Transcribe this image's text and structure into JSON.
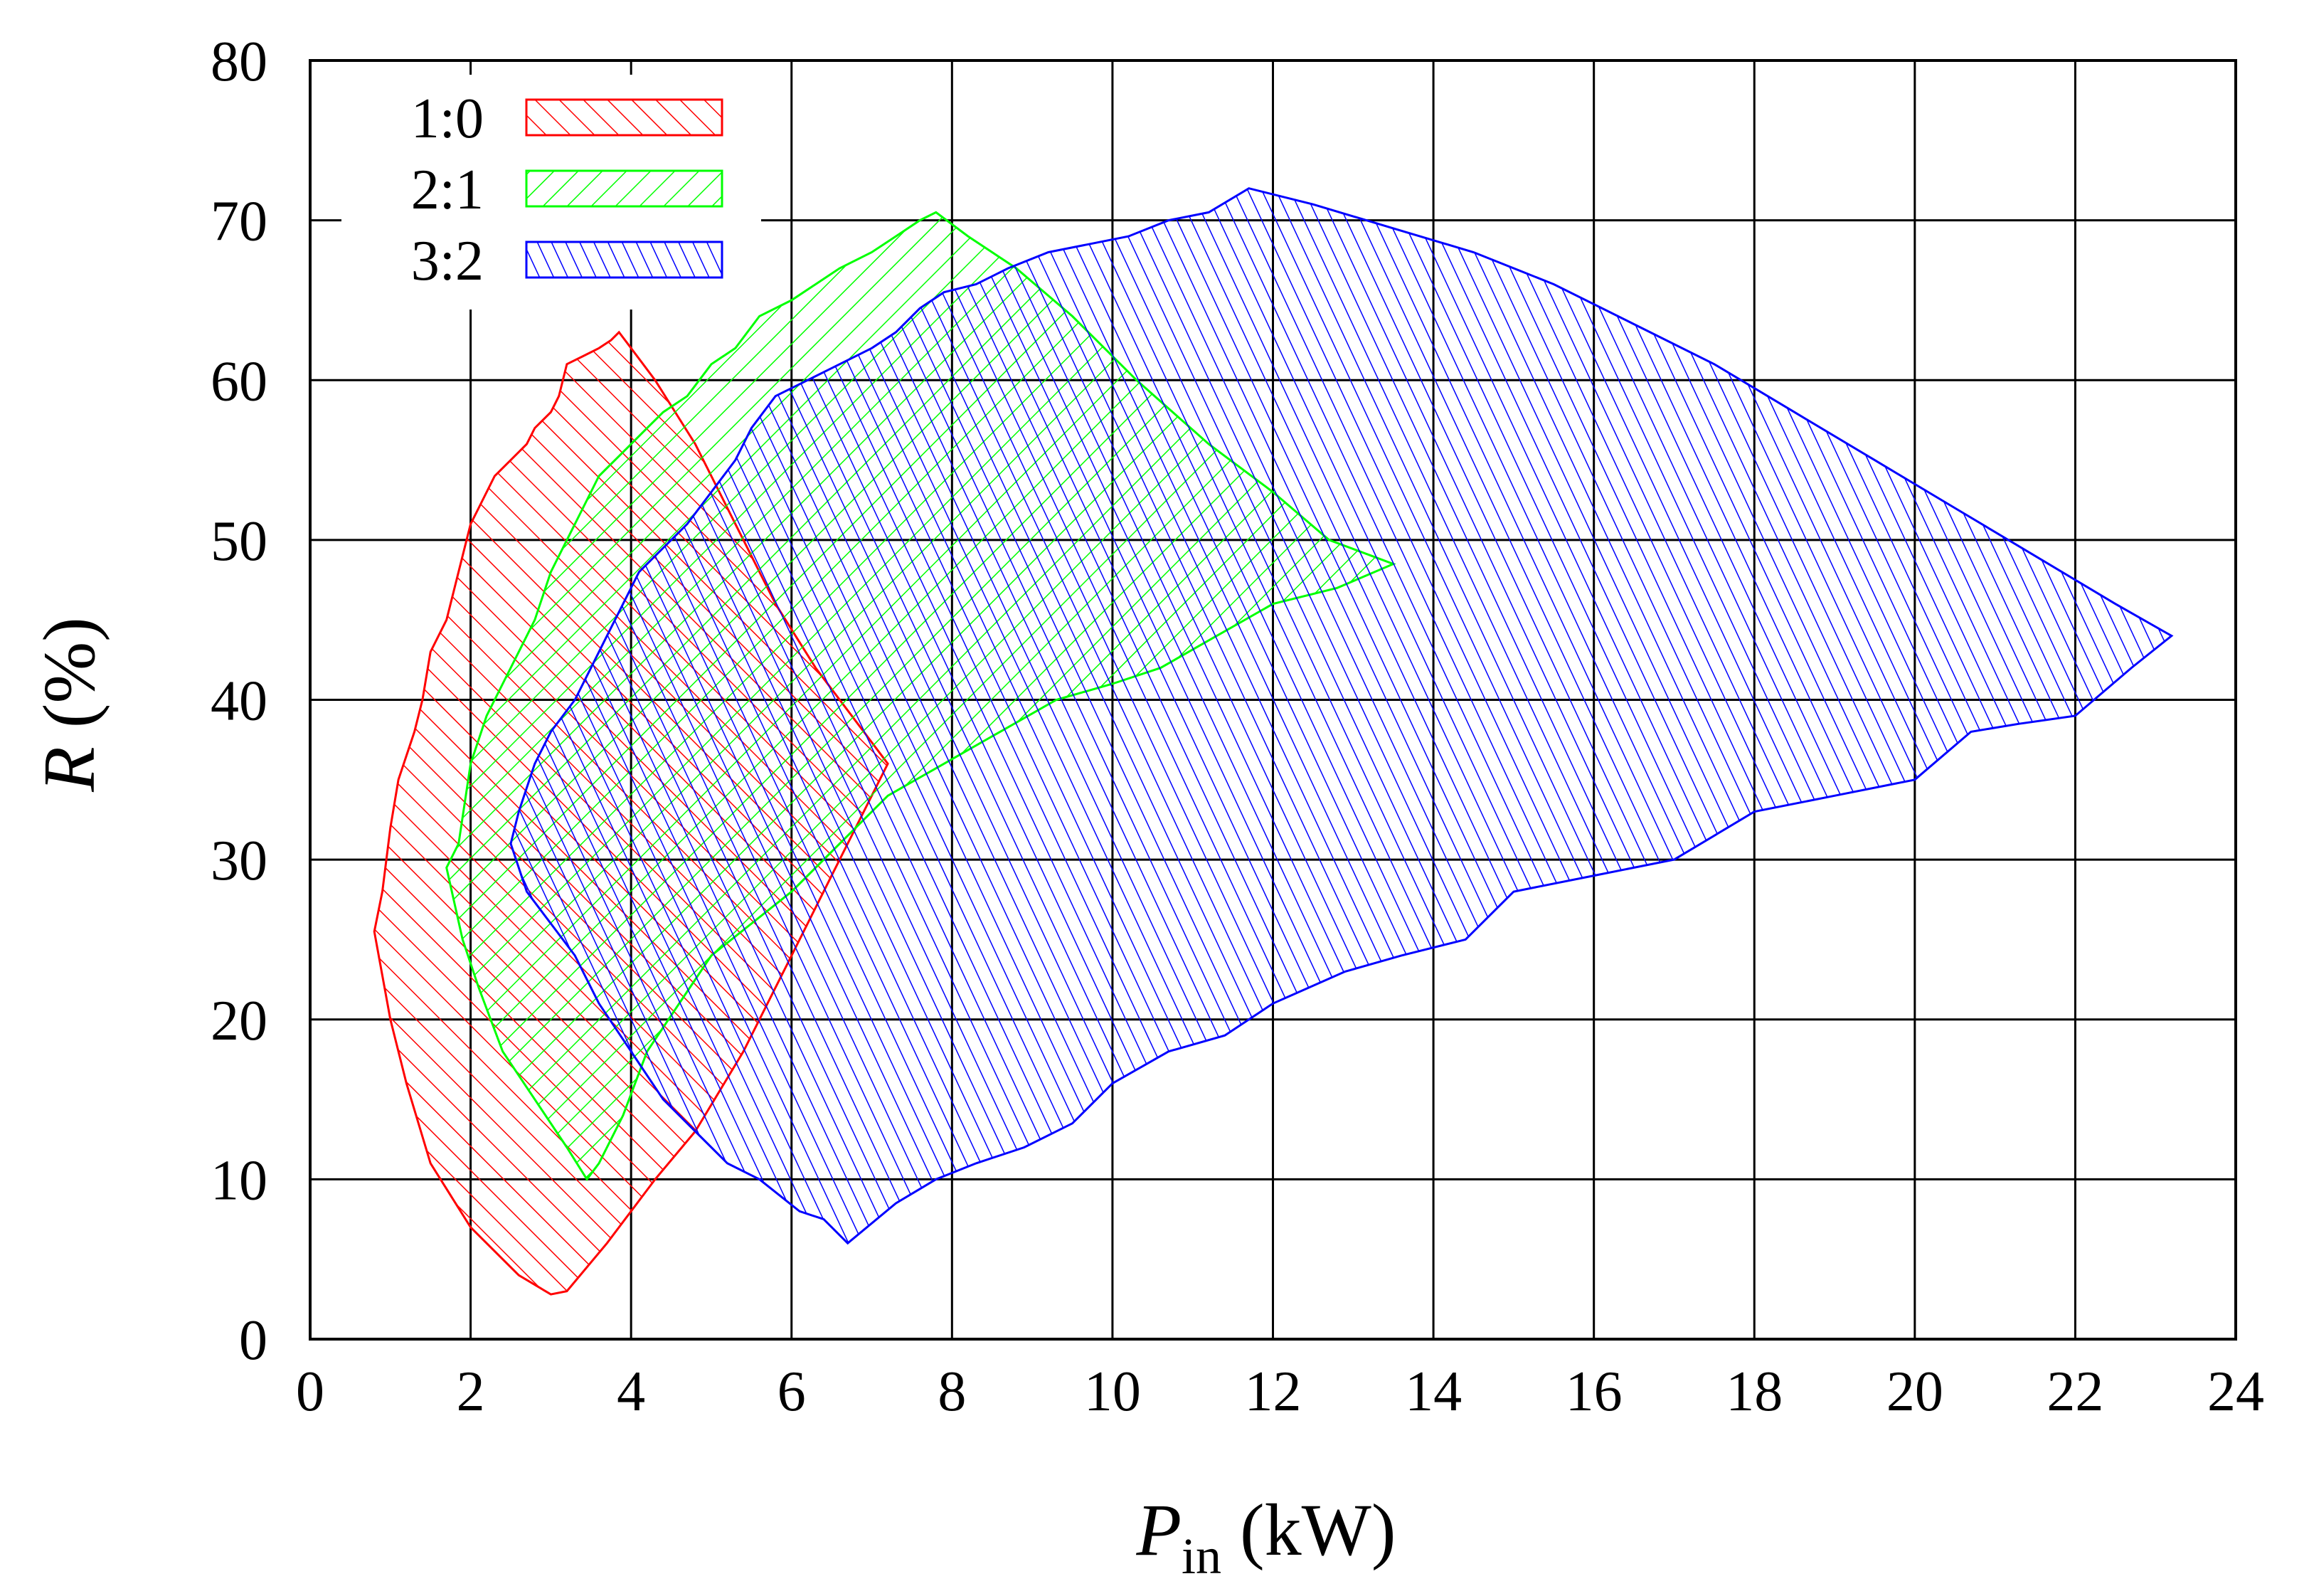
{
  "chart_data": {
    "type": "area",
    "title": "",
    "xlabel": {
      "main": "P",
      "sub": "in",
      "unit": " (kW)"
    },
    "ylabel": {
      "main": "R",
      "unit": " (%)"
    },
    "xlim": [
      0,
      24
    ],
    "ylim": [
      0,
      80
    ],
    "xticks": [
      "0",
      "2",
      "4",
      "6",
      "8",
      "10",
      "12",
      "14",
      "16",
      "18",
      "20",
      "22",
      "24"
    ],
    "yticks": [
      "0",
      "10",
      "20",
      "30",
      "40",
      "50",
      "60",
      "70",
      "80"
    ],
    "grid": true,
    "legend_position": "top-left",
    "series": [
      {
        "name": "1:0",
        "color": "#ff0000",
        "hatch": "backslash",
        "points": [
          [
            0.8,
            25.5
          ],
          [
            0.9,
            28
          ],
          [
            1.0,
            32
          ],
          [
            1.1,
            35
          ],
          [
            1.3,
            38
          ],
          [
            1.4,
            40
          ],
          [
            1.5,
            43
          ],
          [
            1.7,
            45
          ],
          [
            1.9,
            49
          ],
          [
            2.0,
            51
          ],
          [
            2.1,
            52
          ],
          [
            2.3,
            54
          ],
          [
            2.5,
            55
          ],
          [
            2.7,
            56
          ],
          [
            2.8,
            57
          ],
          [
            3.0,
            58
          ],
          [
            3.1,
            59
          ],
          [
            3.2,
            61
          ],
          [
            3.4,
            61.5
          ],
          [
            3.6,
            62
          ],
          [
            3.75,
            62.5
          ],
          [
            3.85,
            63
          ],
          [
            4.0,
            62
          ],
          [
            4.3,
            60
          ],
          [
            4.8,
            56
          ],
          [
            5.3,
            51
          ],
          [
            5.8,
            46
          ],
          [
            6.3,
            42
          ],
          [
            6.9,
            38
          ],
          [
            7.2,
            36
          ],
          [
            6.6,
            30
          ],
          [
            6.0,
            24
          ],
          [
            5.4,
            18
          ],
          [
            4.8,
            13
          ],
          [
            4.3,
            10
          ],
          [
            3.7,
            6
          ],
          [
            3.2,
            3
          ],
          [
            3.0,
            2.8
          ],
          [
            2.6,
            4
          ],
          [
            2.0,
            7
          ],
          [
            1.5,
            11
          ],
          [
            1.2,
            16
          ],
          [
            1.0,
            20
          ]
        ]
      },
      {
        "name": "2:1",
        "color": "#00ff00",
        "hatch": "slash",
        "points": [
          [
            1.7,
            29.5
          ],
          [
            1.85,
            31
          ],
          [
            2.0,
            36
          ],
          [
            2.2,
            39
          ],
          [
            2.4,
            41
          ],
          [
            2.6,
            43
          ],
          [
            2.8,
            45
          ],
          [
            3.0,
            48
          ],
          [
            3.2,
            50
          ],
          [
            3.4,
            52
          ],
          [
            3.6,
            54
          ],
          [
            3.8,
            55
          ],
          [
            4.0,
            56
          ],
          [
            4.2,
            57
          ],
          [
            4.4,
            58
          ],
          [
            4.7,
            59
          ],
          [
            5.0,
            61
          ],
          [
            5.3,
            62
          ],
          [
            5.6,
            64
          ],
          [
            6.0,
            65
          ],
          [
            6.3,
            66
          ],
          [
            6.6,
            67
          ],
          [
            7.0,
            68
          ],
          [
            7.3,
            69
          ],
          [
            7.6,
            70
          ],
          [
            7.8,
            70.5
          ],
          [
            8.2,
            69
          ],
          [
            8.8,
            67
          ],
          [
            9.5,
            64
          ],
          [
            10.3,
            60
          ],
          [
            11.2,
            56
          ],
          [
            12.0,
            53
          ],
          [
            12.7,
            50
          ],
          [
            13.5,
            48.5
          ],
          [
            12.8,
            47
          ],
          [
            12.0,
            46
          ],
          [
            11.3,
            44
          ],
          [
            10.6,
            42
          ],
          [
            10.0,
            41
          ],
          [
            9.3,
            40
          ],
          [
            8.6,
            38
          ],
          [
            7.9,
            36
          ],
          [
            7.2,
            34
          ],
          [
            6.6,
            31
          ],
          [
            6.0,
            28
          ],
          [
            5.5,
            26
          ],
          [
            5.0,
            24
          ],
          [
            4.6,
            21
          ],
          [
            4.2,
            18
          ],
          [
            3.9,
            14
          ],
          [
            3.6,
            11
          ],
          [
            3.45,
            10
          ],
          [
            3.2,
            12
          ],
          [
            2.8,
            15
          ],
          [
            2.4,
            18
          ],
          [
            2.1,
            22
          ],
          [
            1.9,
            25
          ]
        ]
      },
      {
        "name": "3:2",
        "color": "#0000ff",
        "hatch": "backslash",
        "points": [
          [
            2.5,
            31
          ],
          [
            2.6,
            33
          ],
          [
            2.8,
            36
          ],
          [
            3.0,
            38
          ],
          [
            3.3,
            40
          ],
          [
            3.5,
            42
          ],
          [
            3.7,
            44
          ],
          [
            3.9,
            46
          ],
          [
            4.1,
            48
          ],
          [
            4.4,
            49.5
          ],
          [
            4.7,
            51
          ],
          [
            5.0,
            53
          ],
          [
            5.3,
            55
          ],
          [
            5.5,
            57
          ],
          [
            5.8,
            59
          ],
          [
            6.2,
            60
          ],
          [
            6.6,
            61
          ],
          [
            7.0,
            62
          ],
          [
            7.3,
            63
          ],
          [
            7.6,
            64.5
          ],
          [
            7.9,
            65.5
          ],
          [
            8.3,
            66
          ],
          [
            8.7,
            67
          ],
          [
            9.2,
            68
          ],
          [
            9.7,
            68.5
          ],
          [
            10.2,
            69
          ],
          [
            10.7,
            70
          ],
          [
            11.2,
            70.5
          ],
          [
            11.7,
            72
          ],
          [
            12.5,
            71
          ],
          [
            13.5,
            69.5
          ],
          [
            14.5,
            68
          ],
          [
            15.5,
            66
          ],
          [
            16.5,
            63.5
          ],
          [
            17.5,
            61
          ],
          [
            18.5,
            58
          ],
          [
            19.5,
            55
          ],
          [
            20.5,
            52
          ],
          [
            21.5,
            49
          ],
          [
            22.5,
            46
          ],
          [
            23.2,
            44
          ],
          [
            22.7,
            42
          ],
          [
            22.0,
            39
          ],
          [
            21.3,
            38.5
          ],
          [
            20.7,
            38
          ],
          [
            20.0,
            35
          ],
          [
            19.0,
            34
          ],
          [
            18.0,
            33
          ],
          [
            17.0,
            30
          ],
          [
            16.0,
            29
          ],
          [
            15.0,
            28
          ],
          [
            14.4,
            25
          ],
          [
            13.6,
            24
          ],
          [
            12.9,
            23
          ],
          [
            12.0,
            21
          ],
          [
            11.4,
            19
          ],
          [
            10.7,
            18
          ],
          [
            10.0,
            16
          ],
          [
            9.5,
            13.5
          ],
          [
            8.9,
            12
          ],
          [
            8.3,
            11
          ],
          [
            7.8,
            10
          ],
          [
            7.3,
            8.5
          ],
          [
            6.7,
            6
          ],
          [
            6.4,
            7.5
          ],
          [
            6.1,
            8
          ],
          [
            5.6,
            10
          ],
          [
            5.2,
            11
          ],
          [
            4.8,
            13
          ],
          [
            4.4,
            15
          ],
          [
            4.0,
            18
          ],
          [
            3.6,
            21
          ],
          [
            3.3,
            24
          ],
          [
            3.0,
            26
          ],
          [
            2.7,
            28
          ]
        ]
      }
    ]
  }
}
